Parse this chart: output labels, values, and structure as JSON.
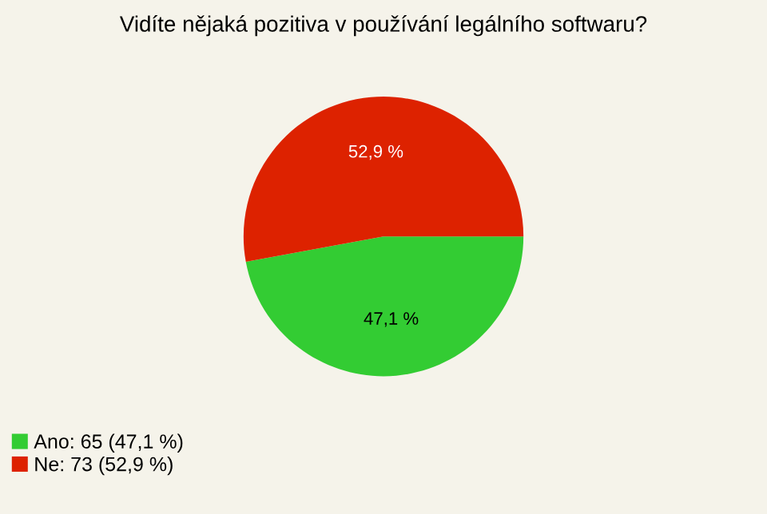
{
  "chart_data": {
    "type": "pie",
    "title": "Vidíte nějaká pozitiva v používání legálního softwaru?",
    "categories": [
      "Ano: 65 (47,1 %)",
      "Ne: 73 (52,9 %)"
    ],
    "values": [
      47.1,
      52.9
    ],
    "colors": [
      "#33cc33",
      "#dd2200"
    ],
    "value_labels": [
      "47,1 %",
      "52,9 %"
    ],
    "legend": "bottom left"
  }
}
